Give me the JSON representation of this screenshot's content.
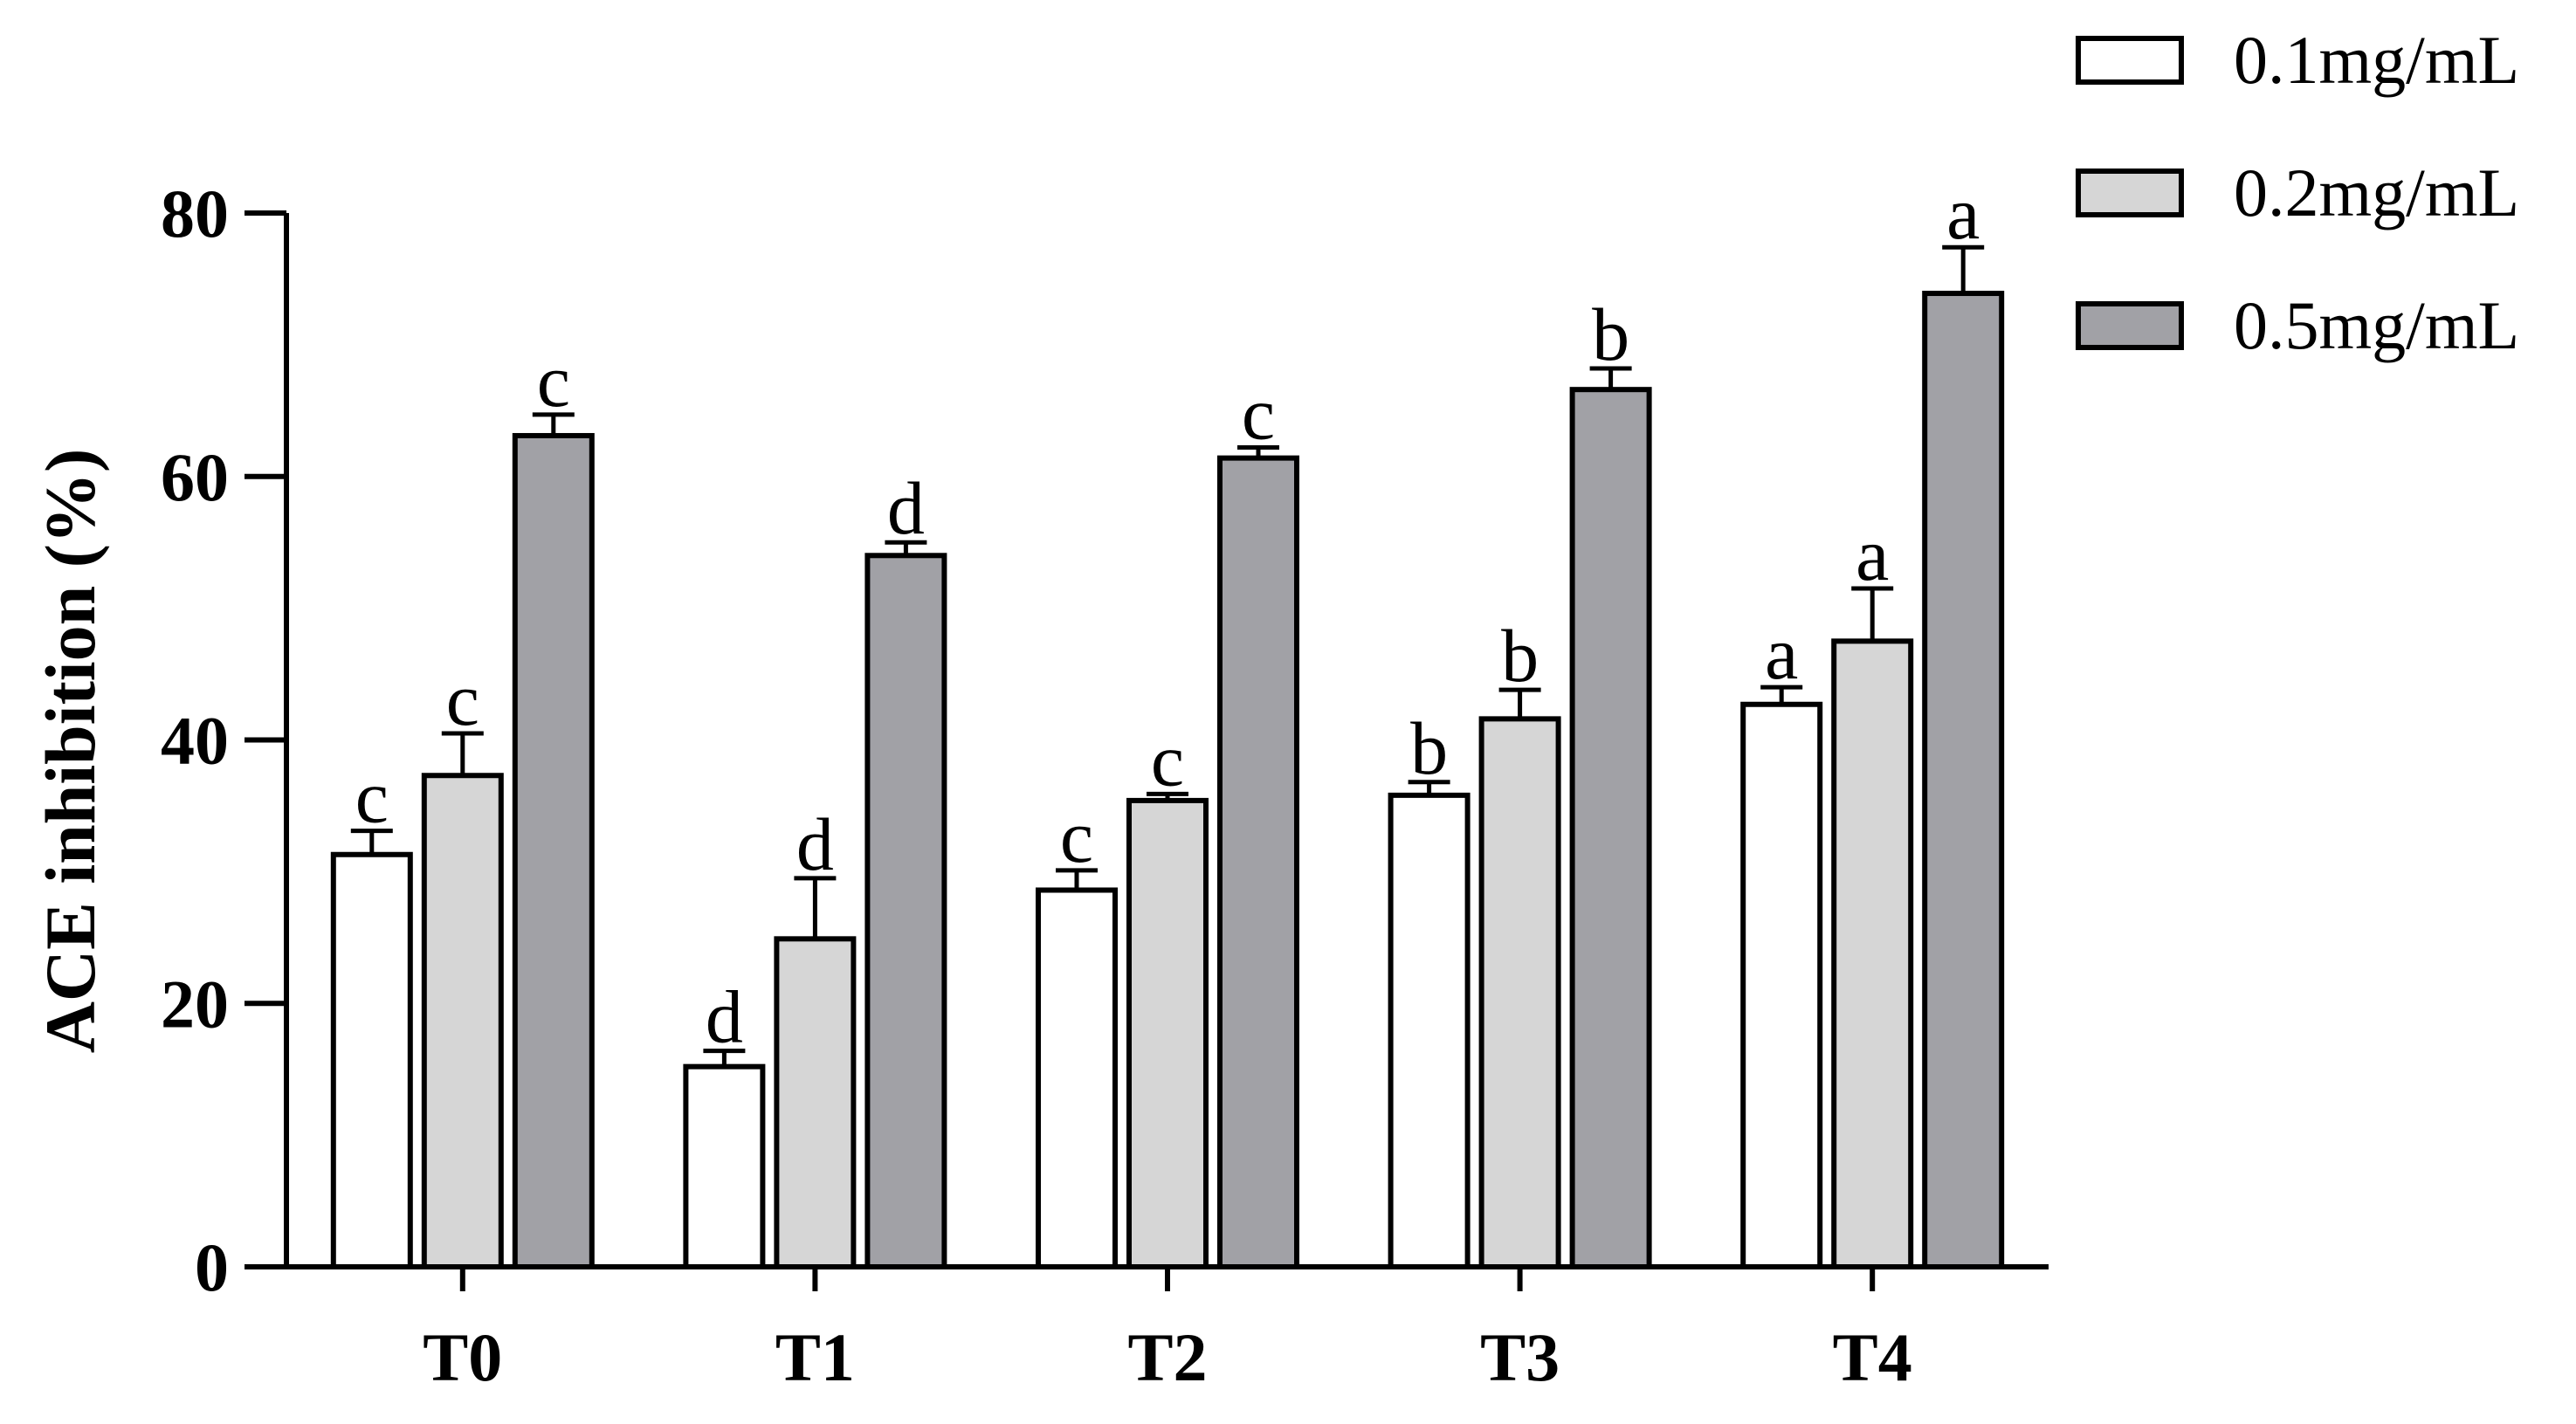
{
  "chart_data": {
    "type": "bar",
    "title": "",
    "xlabel": "",
    "ylabel": "ACE inhibition (%)",
    "ylim": [
      0,
      80
    ],
    "yticks": [
      0,
      20,
      40,
      60,
      80
    ],
    "grid": false,
    "legend_position": "top-right",
    "categories": [
      "T0",
      "T1",
      "T2",
      "T3",
      "T4"
    ],
    "series": [
      {
        "name": "0.1mg/mL",
        "color": "#ffffff",
        "values": [
          31.3,
          15.2,
          28.6,
          35.8,
          42.7
        ],
        "errors": [
          1.8,
          1.2,
          1.5,
          1.0,
          1.3
        ],
        "labels": [
          "c",
          "d",
          "c",
          "b",
          "a"
        ]
      },
      {
        "name": "0.2mg/mL",
        "color": "#d6d6d6",
        "values": [
          37.3,
          24.9,
          35.4,
          41.6,
          47.5
        ],
        "errors": [
          3.2,
          4.6,
          0.5,
          2.2,
          4.0
        ],
        "labels": [
          "c",
          "d",
          "c",
          "b",
          "a"
        ]
      },
      {
        "name": "0.5mg/mL",
        "color": "#a1a1a6",
        "values": [
          63.1,
          54.0,
          61.4,
          66.6,
          73.9
        ],
        "errors": [
          1.6,
          1.0,
          0.8,
          1.6,
          3.5
        ],
        "labels": [
          "c",
          "d",
          "c",
          "b",
          "a"
        ]
      }
    ]
  }
}
